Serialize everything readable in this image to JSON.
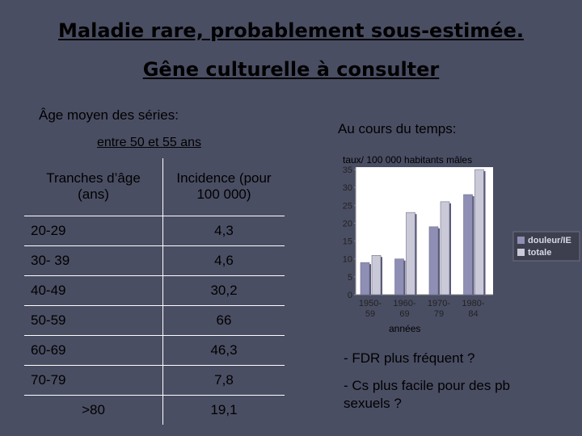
{
  "titles": {
    "line1": "Maladie rare, probablement sous-estimée.",
    "line2": "Gêne culturelle à consulter"
  },
  "left": {
    "age_label": "Âge moyen des séries:",
    "range_label": "entre 50 et 55 ans"
  },
  "table": {
    "headers": [
      "Tranches d’âge (ans)",
      "Incidence (pour 100 000)"
    ],
    "rows": [
      [
        "20-29",
        "4,3"
      ],
      [
        "30- 39",
        "4,6"
      ],
      [
        "40-49",
        "30,2"
      ],
      [
        "50-59",
        "66"
      ],
      [
        "60-69",
        "46,3"
      ],
      [
        "70-79",
        "7,8"
      ],
      [
        ">80",
        "19,1"
      ]
    ]
  },
  "right": {
    "time_label": "Au cours du temps:",
    "note1": "- FDR plus fréquent ?",
    "note2": "- Cs plus facile pour des pb sexuels ?"
  },
  "chart_data": {
    "type": "bar",
    "title": "taux/ 100 000 habitants mâles",
    "xlabel": "années",
    "categories": [
      "1950-59",
      "1960-69",
      "1970-79",
      "1980-84"
    ],
    "category_lines": [
      [
        "1950-",
        "59"
      ],
      [
        "1960-",
        "69"
      ],
      [
        "1970-",
        "79"
      ],
      [
        "1980-",
        "84"
      ]
    ],
    "series": [
      {
        "name": "douleur/IE",
        "values": [
          9,
          10,
          19,
          28
        ],
        "color": "#8f8fb5"
      },
      {
        "name": "totale",
        "values": [
          11,
          23,
          26,
          35
        ],
        "color": "#c9c9d8"
      }
    ],
    "ylim": [
      0,
      35
    ],
    "yticks": [
      0,
      5,
      10,
      15,
      20,
      25,
      30,
      35
    ],
    "grid": false,
    "legend": "right",
    "colors": {
      "axis_panel": "#ffffff",
      "legend_bg": "#3d3f4e",
      "tick_text": "#222222"
    }
  }
}
